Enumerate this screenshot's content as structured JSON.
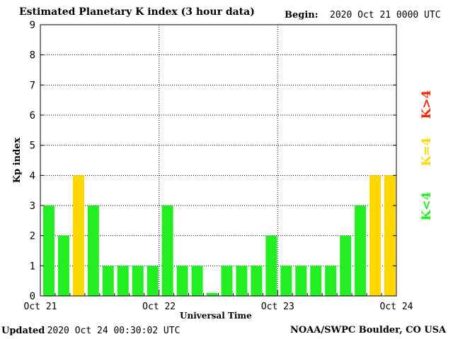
{
  "header": {
    "title": "Estimated Planetary K index (3 hour data)",
    "begin_label": "Begin:",
    "begin_value": "2020 Oct 21 0000 UTC"
  },
  "footer": {
    "updated_label": "Updated",
    "updated_value": "2020 Oct 24 00:30:02 UTC",
    "source": "NOAA/SWPC Boulder, CO USA"
  },
  "legend": [
    {
      "label": "K<4",
      "color": "#22ee22"
    },
    {
      "label": "K=4",
      "color": "#ffd700"
    },
    {
      "label": "K>4",
      "color": "#ff2200"
    }
  ],
  "chart_data": {
    "type": "bar",
    "title": "Estimated Planetary K index (3 hour data)",
    "xlabel": "Universal Time",
    "ylabel": "Kp index",
    "ylim": [
      0,
      9
    ],
    "yticks": [
      "0",
      "1",
      "2",
      "3",
      "4",
      "5",
      "6",
      "7",
      "8",
      "9"
    ],
    "xticks": [
      "Oct 21",
      "Oct 22",
      "Oct 23",
      "Oct 24"
    ],
    "interval_hours": 3,
    "values": [
      3,
      2,
      4,
      3,
      1,
      1,
      1,
      1,
      3,
      1,
      1,
      0.1,
      1,
      1,
      1,
      2,
      1,
      1,
      1,
      1,
      2,
      3,
      4,
      4
    ],
    "colors": {
      "below_4": "#22ee22",
      "equal_4": "#ffd700",
      "above_4": "#ff2200"
    },
    "grid": "dotted",
    "legend_placement": "right"
  }
}
